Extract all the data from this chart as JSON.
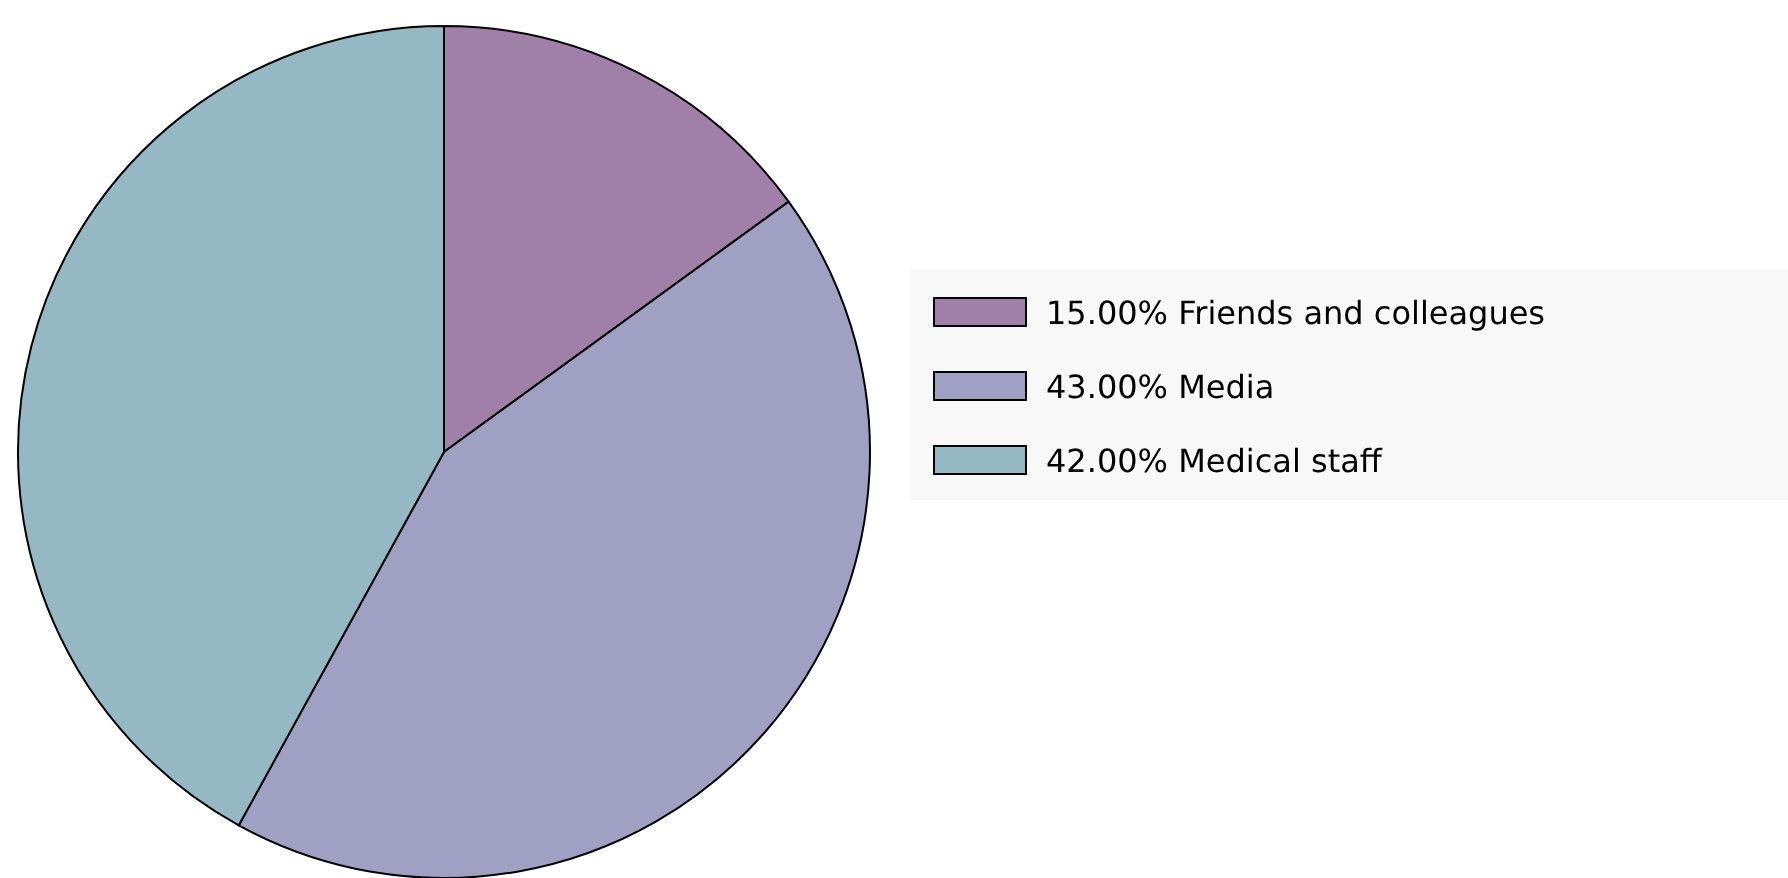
{
  "chart_data": {
    "type": "pie",
    "categories": [
      "Friends and colleagues",
      "Media",
      "Medical staff"
    ],
    "values": [
      15,
      43,
      42
    ],
    "value_labels": [
      "15.00%",
      "43.00%",
      "42.00%"
    ],
    "colors": [
      "#a07fa8",
      "#a0a0c2",
      "#95b9c4"
    ],
    "legend": "right"
  }
}
